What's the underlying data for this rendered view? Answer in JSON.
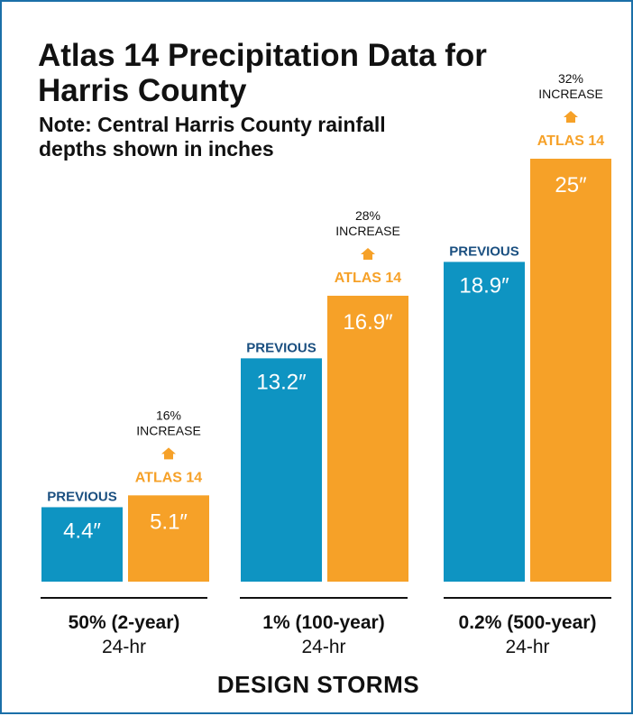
{
  "chart_data": {
    "type": "bar",
    "title": "Atlas 14 Precipitation Data for Harris County",
    "subtitle": "Note: Central Harris County rainfall depths shown in inches",
    "xlabel": "DESIGN STORMS",
    "ylabel": "",
    "ylim": [
      0,
      27
    ],
    "grid": false,
    "categories": [
      {
        "name": "50% (2-year)",
        "sub": "24-hr"
      },
      {
        "name": "1% (100-year)",
        "sub": "24-hr"
      },
      {
        "name": "0.2% (500-year)",
        "sub": "24-hr"
      }
    ],
    "series": [
      {
        "name": "PREVIOUS",
        "color": "#0e94c2",
        "values": [
          4.4,
          13.2,
          18.9
        ],
        "labels": [
          "4.4″",
          "13.2″",
          "18.9″"
        ]
      },
      {
        "name": "ATLAS 14",
        "color": "#f6a128",
        "values": [
          5.1,
          16.9,
          25
        ],
        "labels": [
          "5.1″",
          "16.9″",
          "25″"
        ]
      }
    ],
    "annotations": [
      {
        "pct": "16%",
        "text": "INCREASE"
      },
      {
        "pct": "28%",
        "text": "INCREASE"
      },
      {
        "pct": "32%",
        "text": "INCREASE"
      }
    ]
  }
}
